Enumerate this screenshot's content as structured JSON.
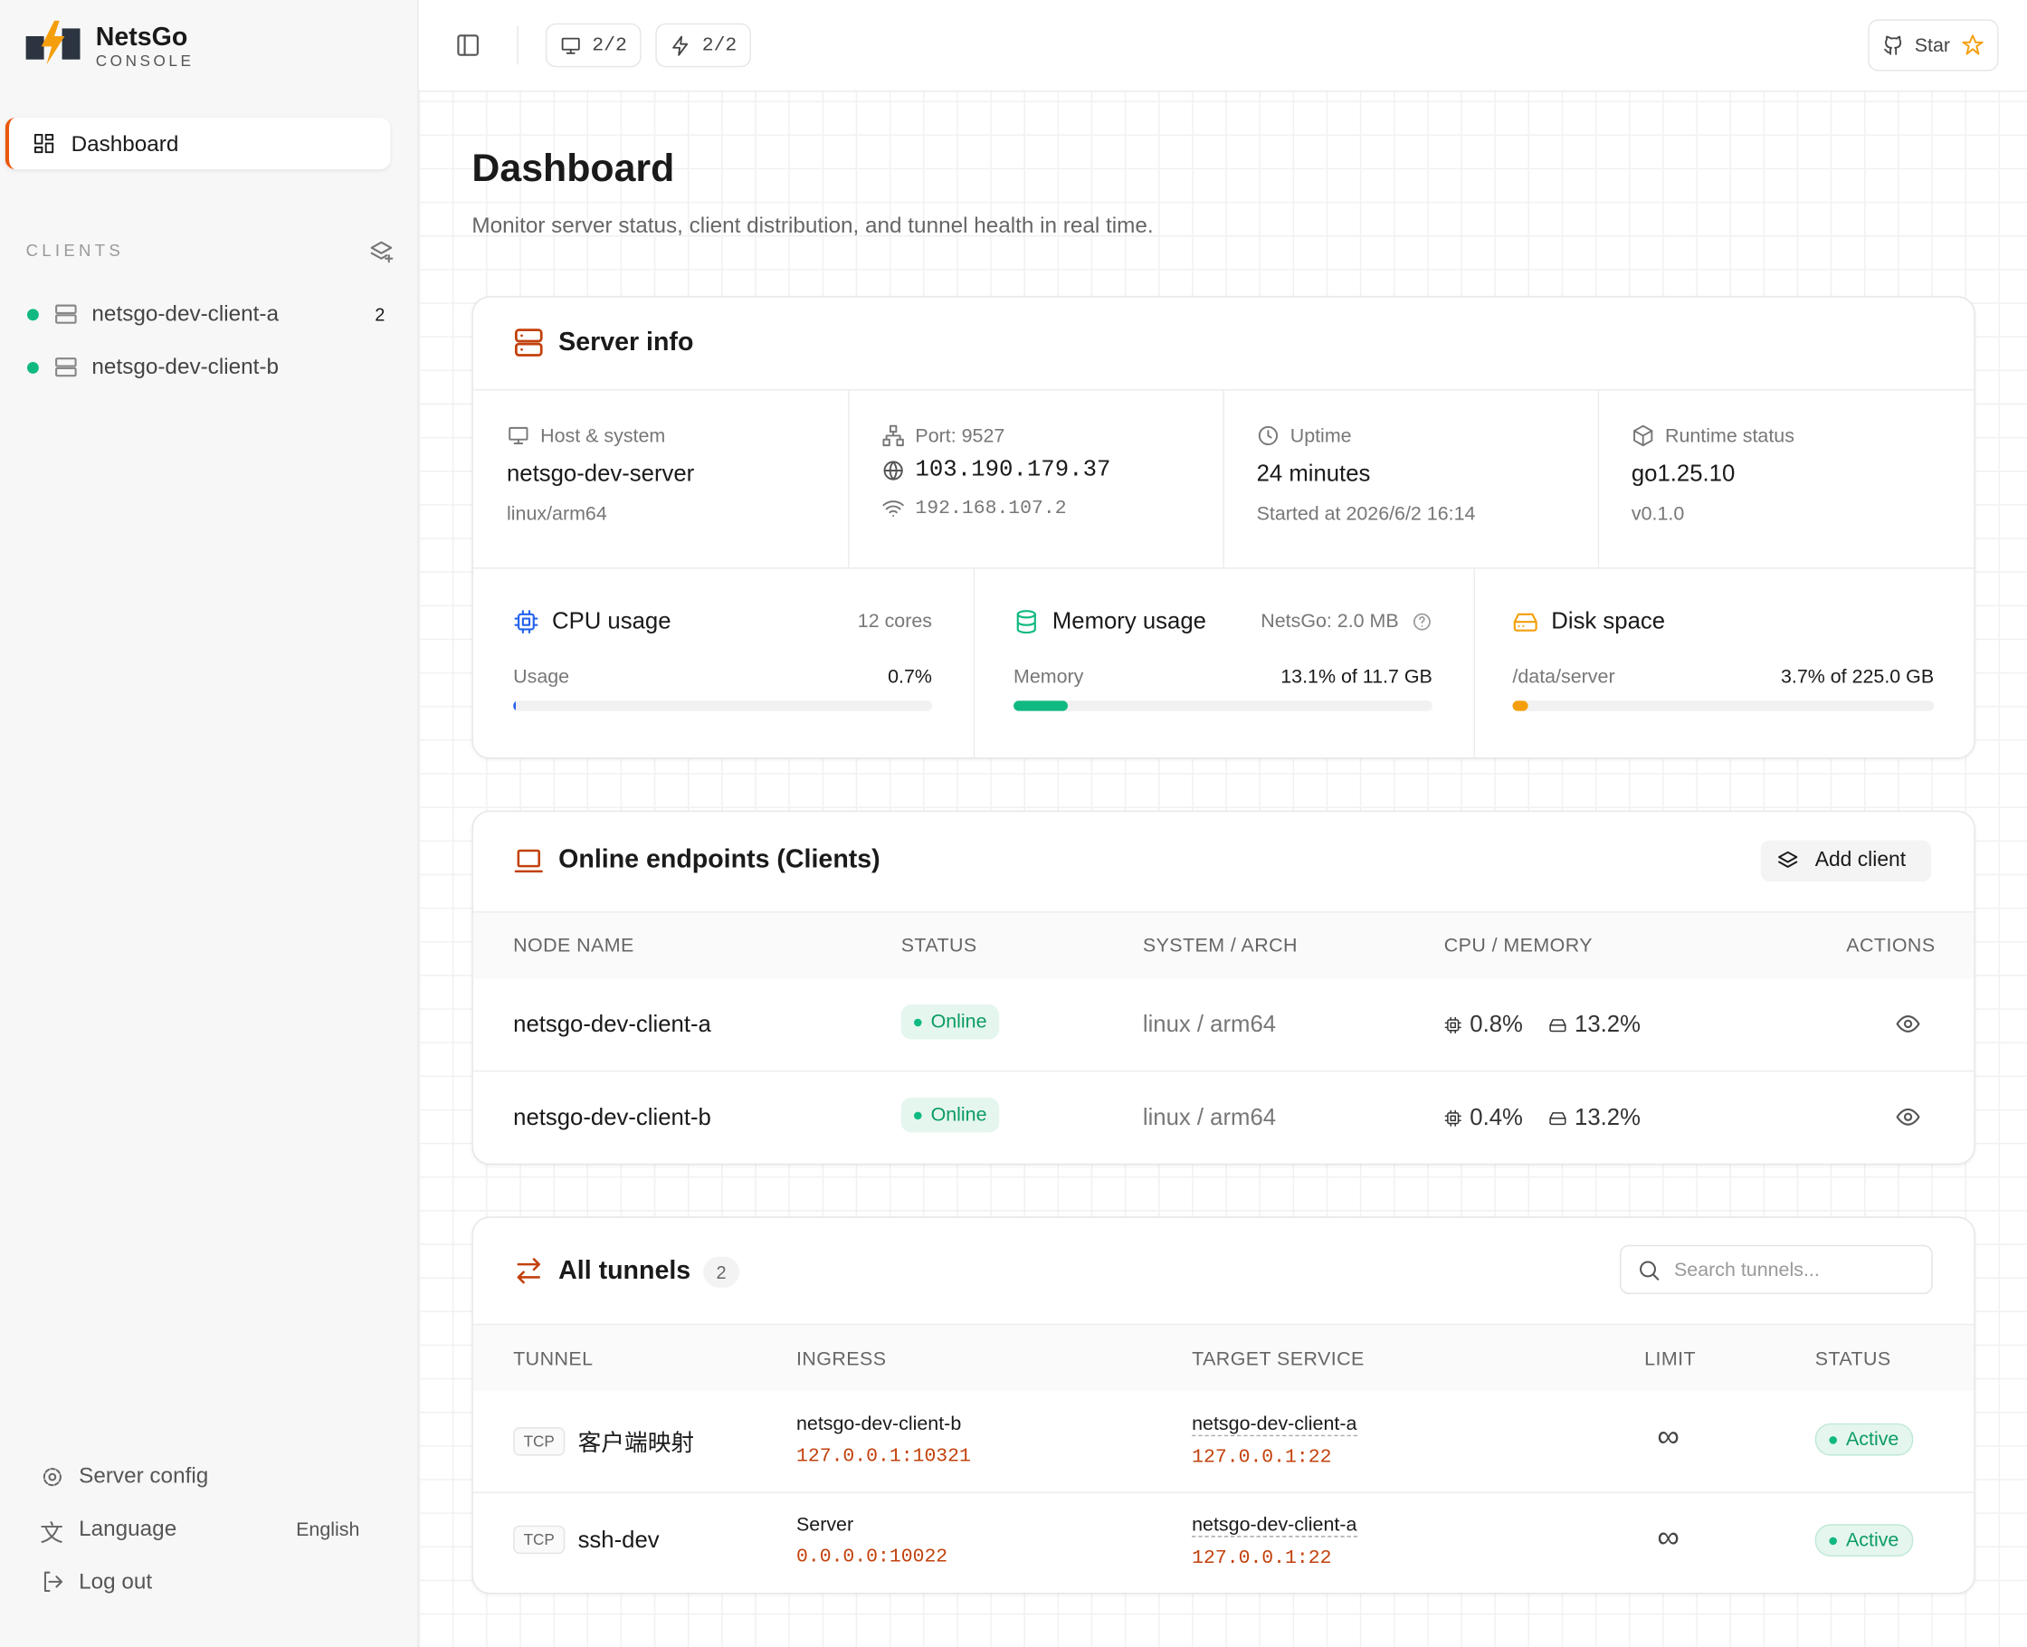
{
  "brand": {
    "name": "NetsGo",
    "sub": "CONSOLE"
  },
  "nav": {
    "dashboard": "Dashboard"
  },
  "sidebar": {
    "clients_label": "CLIENTS",
    "clients": [
      {
        "name": "netsgo-dev-client-a",
        "count": "2"
      },
      {
        "name": "netsgo-dev-client-b"
      }
    ],
    "footer": {
      "server_config": "Server config",
      "language": "Language",
      "language_value": "English",
      "logout": "Log out"
    }
  },
  "topbar": {
    "clients_count": "2/2",
    "tunnels_count": "2/2",
    "star": "Star"
  },
  "page": {
    "title": "Dashboard",
    "subtitle": "Monitor server status, client distribution, and tunnel health in real time."
  },
  "server_info": {
    "title": "Server info",
    "cells": [
      {
        "label": "Host & system",
        "value": "netsgo-dev-server",
        "sub": "linux/arm64"
      },
      {
        "label": "Port: 9527",
        "value": "103.190.179.37",
        "sub": "192.168.107.2"
      },
      {
        "label": "Uptime",
        "value": "24 minutes",
        "sub": "Started at 2026/6/2 16:14"
      },
      {
        "label": "Runtime status",
        "value": "go1.25.10",
        "sub": "v0.1.0"
      }
    ],
    "usage": [
      {
        "title": "CPU usage",
        "meta": "12 cores",
        "label": "Usage",
        "value": "0.7%"
      },
      {
        "title": "Memory usage",
        "meta": "NetsGo: 2.0 MB",
        "label": "Memory",
        "value": "13.1% of 11.7 GB"
      },
      {
        "title": "Disk space",
        "label": "/data/server",
        "value": "3.7% of 225.0 GB"
      }
    ]
  },
  "clients": {
    "title": "Online endpoints (Clients)",
    "add": "Add client",
    "columns": [
      "NODE NAME",
      "STATUS",
      "SYSTEM / ARCH",
      "CPU / MEMORY",
      "ACTIONS"
    ],
    "rows": [
      {
        "name": "netsgo-dev-client-a",
        "status": "Online",
        "system": "linux / arm64",
        "cpu": "0.8%",
        "mem": "13.2%"
      },
      {
        "name": "netsgo-dev-client-b",
        "status": "Online",
        "system": "linux / arm64",
        "cpu": "0.4%",
        "mem": "13.2%"
      }
    ]
  },
  "tunnels": {
    "title": "All tunnels",
    "count": "2",
    "search_placeholder": "Search tunnels...",
    "columns": [
      "TUNNEL",
      "INGRESS",
      "TARGET SERVICE",
      "LIMIT",
      "STATUS"
    ],
    "rows": [
      {
        "proto": "TCP",
        "name": "客户端映射",
        "ingress_host": "netsgo-dev-client-b",
        "ingress_addr": "127.0.0.1:10321",
        "target_host": "netsgo-dev-client-a",
        "target_addr": "127.0.0.1:22",
        "limit": "∞",
        "status": "Active"
      },
      {
        "proto": "TCP",
        "name": "ssh-dev",
        "ingress_host": "Server",
        "ingress_addr": "0.0.0.0:10022",
        "target_host": "netsgo-dev-client-a",
        "target_addr": "127.0.0.1:22",
        "limit": "∞",
        "status": "Active"
      }
    ]
  }
}
